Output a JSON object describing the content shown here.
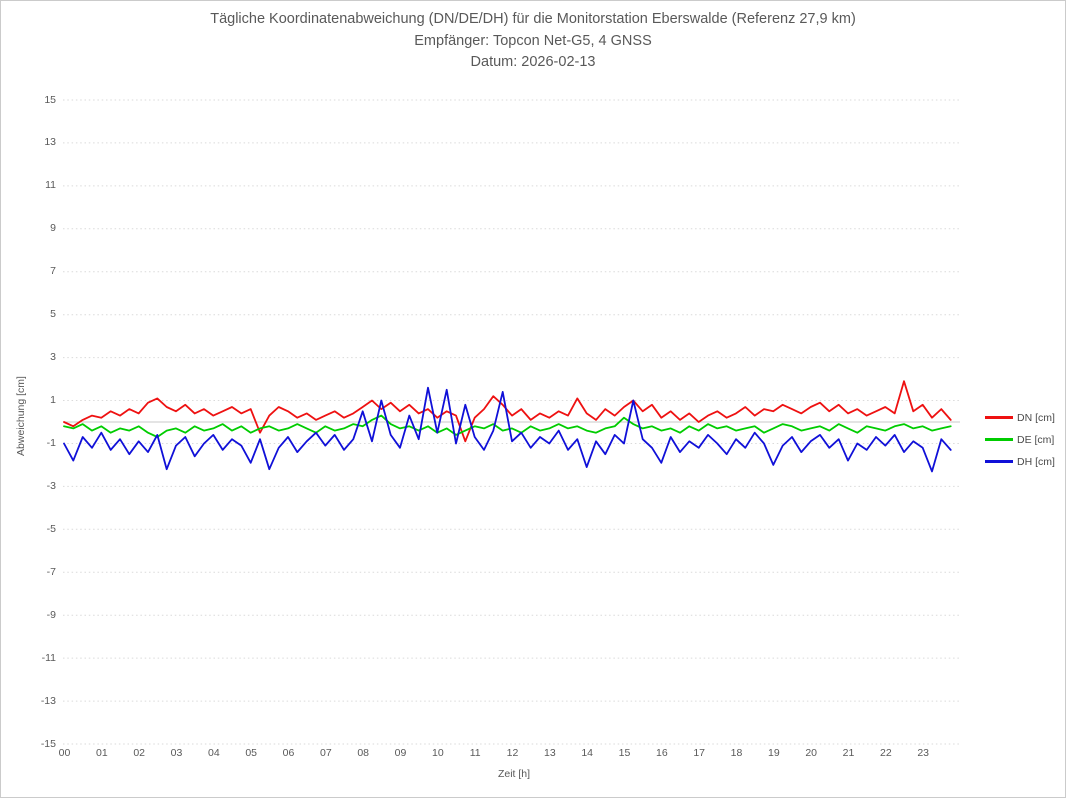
{
  "title": {
    "line1": "Tägliche Koordinatenabweichung (DN/DE/DH) für die Monitorstation Eberswalde (Referenz 27,9 km)",
    "line2": "Empfänger: Topcon Net-G5, 4 GNSS",
    "line3": "Datum: 2026-02-13"
  },
  "colors": {
    "text": "#595959",
    "grid": "#dadada",
    "zero_line": "#c8c8c8",
    "window_border": "#cbcbcb",
    "dn": "#ee1111",
    "de": "#00cc00",
    "dh": "#1010d8"
  },
  "chart_data": {
    "type": "line",
    "title": "Tägliche Koordinatenabweichung (DN/DE/DH) für die Monitorstation Eberswalde (Referenz 27,9 km)",
    "subtitle1": "Empfänger: Topcon Net-G5, 4 GNSS",
    "subtitle2": "Datum: 2026-02-13",
    "xlabel": "Zeit [h]",
    "ylabel": "Abweichung [cm]",
    "ylim": [
      -15,
      15
    ],
    "yticks": [
      15,
      13,
      11,
      9,
      7,
      5,
      3,
      1,
      -1,
      -3,
      -5,
      -7,
      -9,
      -11,
      -13,
      -15
    ],
    "xticks": [
      "00",
      "01",
      "02",
      "03",
      "04",
      "05",
      "06",
      "07",
      "08",
      "09",
      "10",
      "11",
      "12",
      "13",
      "14",
      "15",
      "16",
      "17",
      "18",
      "19",
      "20",
      "21",
      "22",
      "23"
    ],
    "x_start_hour": 0,
    "x_interval_minutes": 15,
    "grid": "horizontal-dotted",
    "zero_line": true,
    "legend_position": "right-center",
    "series": [
      {
        "name": "DN [cm]",
        "color": "#ee1111",
        "values": [
          0.0,
          -0.2,
          0.1,
          0.3,
          0.2,
          0.5,
          0.3,
          0.6,
          0.4,
          0.9,
          1.1,
          0.7,
          0.5,
          0.8,
          0.4,
          0.6,
          0.3,
          0.5,
          0.7,
          0.4,
          0.6,
          -0.5,
          0.3,
          0.7,
          0.5,
          0.2,
          0.4,
          0.1,
          0.3,
          0.5,
          0.2,
          0.4,
          0.7,
          1.0,
          0.6,
          0.9,
          0.5,
          0.8,
          0.4,
          0.6,
          0.2,
          0.5,
          0.3,
          -0.9,
          0.2,
          0.6,
          1.2,
          0.8,
          0.3,
          0.6,
          0.1,
          0.4,
          0.2,
          0.5,
          0.3,
          1.1,
          0.4,
          0.1,
          0.6,
          0.3,
          0.7,
          1.0,
          0.5,
          0.8,
          0.2,
          0.5,
          0.1,
          0.4,
          0.0,
          0.3,
          0.5,
          0.2,
          0.4,
          0.7,
          0.3,
          0.6,
          0.5,
          0.8,
          0.6,
          0.4,
          0.7,
          0.9,
          0.5,
          0.8,
          0.4,
          0.6,
          0.3,
          0.5,
          0.7,
          0.4,
          1.9,
          0.5,
          0.8,
          0.2,
          0.6,
          0.1
        ]
      },
      {
        "name": "DE [cm]",
        "color": "#00cc00",
        "values": [
          -0.2,
          -0.3,
          -0.1,
          -0.4,
          -0.2,
          -0.5,
          -0.3,
          -0.4,
          -0.2,
          -0.5,
          -0.7,
          -0.4,
          -0.3,
          -0.5,
          -0.2,
          -0.4,
          -0.3,
          -0.1,
          -0.4,
          -0.2,
          -0.5,
          -0.3,
          -0.2,
          -0.4,
          -0.3,
          -0.1,
          -0.3,
          -0.5,
          -0.2,
          -0.4,
          -0.3,
          -0.1,
          -0.2,
          0.1,
          0.3,
          -0.1,
          -0.3,
          -0.2,
          -0.4,
          -0.2,
          -0.5,
          -0.3,
          -0.6,
          -0.4,
          -0.2,
          -0.3,
          -0.1,
          -0.4,
          -0.3,
          -0.5,
          -0.2,
          -0.4,
          -0.3,
          -0.1,
          -0.3,
          -0.2,
          -0.4,
          -0.5,
          -0.3,
          -0.2,
          0.2,
          -0.1,
          -0.3,
          -0.2,
          -0.4,
          -0.3,
          -0.5,
          -0.2,
          -0.4,
          -0.1,
          -0.3,
          -0.2,
          -0.4,
          -0.3,
          -0.2,
          -0.5,
          -0.3,
          -0.1,
          -0.2,
          -0.4,
          -0.3,
          -0.2,
          -0.4,
          -0.1,
          -0.3,
          -0.5,
          -0.2,
          -0.3,
          -0.4,
          -0.2,
          -0.1,
          -0.3,
          -0.2,
          -0.4,
          -0.3,
          -0.2
        ]
      },
      {
        "name": "DH [cm]",
        "color": "#1010d8",
        "values": [
          -1.0,
          -1.8,
          -0.7,
          -1.2,
          -0.5,
          -1.3,
          -0.8,
          -1.5,
          -0.9,
          -1.4,
          -0.6,
          -2.2,
          -1.1,
          -0.7,
          -1.6,
          -1.0,
          -0.6,
          -1.3,
          -0.8,
          -1.1,
          -1.9,
          -0.8,
          -2.2,
          -1.2,
          -0.7,
          -1.4,
          -0.9,
          -0.5,
          -1.1,
          -0.6,
          -1.3,
          -0.8,
          0.5,
          -0.9,
          1.0,
          -0.6,
          -1.2,
          0.3,
          -0.8,
          1.6,
          -0.5,
          1.5,
          -1.0,
          0.8,
          -0.7,
          -1.3,
          -0.4,
          1.4,
          -0.9,
          -0.5,
          -1.2,
          -0.7,
          -1.0,
          -0.4,
          -1.3,
          -0.8,
          -2.1,
          -0.9,
          -1.5,
          -0.6,
          -1.0,
          1.0,
          -0.8,
          -1.2,
          -1.9,
          -0.7,
          -1.4,
          -0.9,
          -1.2,
          -0.6,
          -1.0,
          -1.5,
          -0.8,
          -1.2,
          -0.5,
          -1.0,
          -2.0,
          -1.1,
          -0.7,
          -1.4,
          -0.9,
          -0.6,
          -1.2,
          -0.8,
          -1.8,
          -1.0,
          -1.3,
          -0.7,
          -1.1,
          -0.6,
          -1.4,
          -0.9,
          -1.2,
          -2.3,
          -0.8,
          -1.3
        ]
      }
    ]
  }
}
